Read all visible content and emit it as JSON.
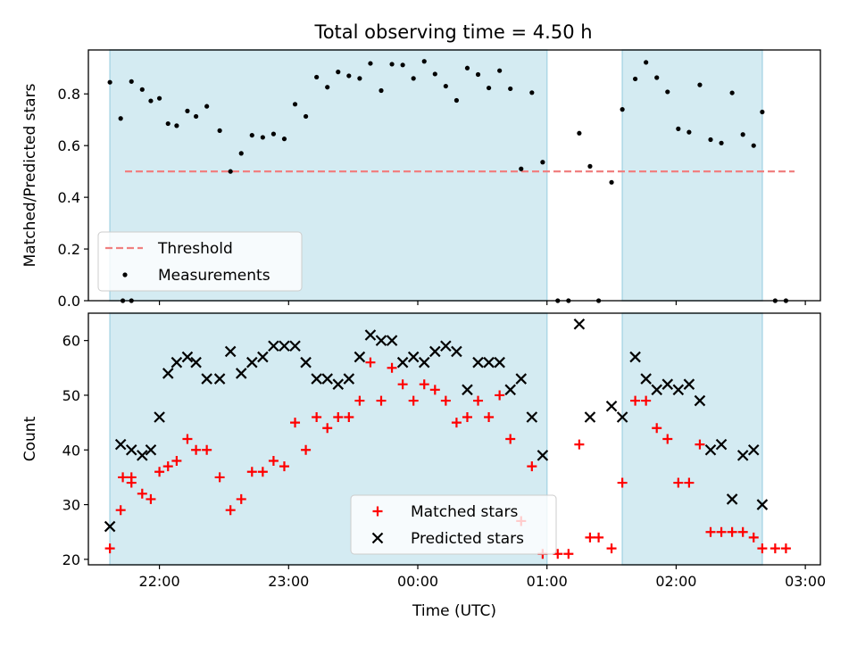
{
  "figure": {
    "title": "Total observing time = 4.50 h",
    "colors": {
      "shade": "#add8e6",
      "threshold": "#f08080",
      "measurement": "#000000",
      "matched": "#ff0000",
      "predicted": "#000000"
    }
  },
  "chart_data": [
    {
      "type": "scatter",
      "xlabel": "",
      "ylabel": "Matched/Predicted stars",
      "xlim": [
        "21:27",
        "03:07"
      ],
      "xticks": [
        "22:00",
        "23:00",
        "00:00",
        "01:00",
        "02:00",
        "03:00"
      ],
      "xtick_labels_visible": false,
      "ylim": [
        0,
        0.97
      ],
      "yticks": [
        "0.0",
        "0.2",
        "0.4",
        "0.6",
        "0.8"
      ],
      "shaded_intervals": [
        [
          "21:37",
          "01:00"
        ],
        [
          "01:35",
          "02:40"
        ]
      ],
      "legend": {
        "position": "lower-left",
        "entries": [
          "Threshold",
          "Measurements"
        ]
      },
      "series": [
        {
          "name": "Threshold",
          "kind": "dashed-line",
          "points": [
            [
              "21:44",
              0.5
            ],
            [
              "02:55",
              0.5
            ]
          ]
        },
        {
          "name": "Measurements",
          "kind": "dot",
          "points": [
            [
              "21:43",
              0.0
            ],
            [
              "21:47",
              0.0
            ],
            [
              "21:37",
              0.845
            ],
            [
              "21:42",
              0.705
            ],
            [
              "21:47",
              0.848
            ],
            [
              "21:52",
              0.817
            ],
            [
              "21:56",
              0.773
            ],
            [
              "22:00",
              0.783
            ],
            [
              "22:04",
              0.685
            ],
            [
              "22:08",
              0.677
            ],
            [
              "22:13",
              0.734
            ],
            [
              "22:17",
              0.713
            ],
            [
              "22:22",
              0.752
            ],
            [
              "22:28",
              0.658
            ],
            [
              "22:33",
              0.5
            ],
            [
              "22:38",
              0.57
            ],
            [
              "22:43",
              0.64
            ],
            [
              "22:48",
              0.632
            ],
            [
              "22:53",
              0.645
            ],
            [
              "22:58",
              0.626
            ],
            [
              "23:03",
              0.76
            ],
            [
              "23:08",
              0.713
            ],
            [
              "23:13",
              0.865
            ],
            [
              "23:18",
              0.826
            ],
            [
              "23:23",
              0.885
            ],
            [
              "23:28",
              0.87
            ],
            [
              "23:33",
              0.86
            ],
            [
              "23:38",
              0.918
            ],
            [
              "23:43",
              0.813
            ],
            [
              "23:48",
              0.915
            ],
            [
              "23:53",
              0.912
            ],
            [
              "23:58",
              0.86
            ],
            [
              "00:03",
              0.926
            ],
            [
              "00:08",
              0.877
            ],
            [
              "00:13",
              0.83
            ],
            [
              "00:18",
              0.775
            ],
            [
              "00:23",
              0.9
            ],
            [
              "00:28",
              0.875
            ],
            [
              "00:33",
              0.823
            ],
            [
              "00:38",
              0.89
            ],
            [
              "00:43",
              0.82
            ],
            [
              "00:48",
              0.51
            ],
            [
              "00:53",
              0.805
            ],
            [
              "00:58",
              0.536
            ],
            [
              "01:05",
              0.0
            ],
            [
              "01:10",
              0.0
            ],
            [
              "01:15",
              0.648
            ],
            [
              "01:20",
              0.52
            ],
            [
              "01:24",
              0.0
            ],
            [
              "01:30",
              0.458
            ],
            [
              "01:35",
              0.74
            ],
            [
              "01:41",
              0.858
            ],
            [
              "01:46",
              0.922
            ],
            [
              "01:51",
              0.863
            ],
            [
              "01:56",
              0.808
            ],
            [
              "02:01",
              0.665
            ],
            [
              "02:06",
              0.652
            ],
            [
              "02:11",
              0.835
            ],
            [
              "02:16",
              0.623
            ],
            [
              "02:21",
              0.61
            ],
            [
              "02:26",
              0.804
            ],
            [
              "02:31",
              0.643
            ],
            [
              "02:36",
              0.6
            ],
            [
              "02:40",
              0.73
            ],
            [
              "02:46",
              0.0
            ],
            [
              "02:51",
              0.0
            ]
          ]
        }
      ]
    },
    {
      "type": "scatter",
      "xlabel": "Time (UTC)",
      "ylabel": "Count",
      "xlim": [
        "21:27",
        "03:07"
      ],
      "xticks": [
        "22:00",
        "23:00",
        "00:00",
        "01:00",
        "02:00",
        "03:00"
      ],
      "ylim": [
        19,
        65
      ],
      "yticks": [
        "20",
        "30",
        "40",
        "50",
        "60"
      ],
      "shaded_intervals": [
        [
          "21:37",
          "01:00"
        ],
        [
          "01:35",
          "02:40"
        ]
      ],
      "legend": {
        "position": "lower-center",
        "entries": [
          "Matched stars",
          "Predicted stars"
        ]
      },
      "series": [
        {
          "name": "Matched stars",
          "marker": "+",
          "points": [
            [
              "21:43",
              35
            ],
            [
              "21:47",
              35
            ],
            [
              "21:37",
              22
            ],
            [
              "21:42",
              29
            ],
            [
              "21:47",
              34
            ],
            [
              "21:52",
              32
            ],
            [
              "21:56",
              31
            ],
            [
              "22:00",
              36
            ],
            [
              "22:04",
              37
            ],
            [
              "22:08",
              38
            ],
            [
              "22:13",
              42
            ],
            [
              "22:17",
              40
            ],
            [
              "22:22",
              40
            ],
            [
              "22:28",
              35
            ],
            [
              "22:33",
              29
            ],
            [
              "22:38",
              31
            ],
            [
              "22:43",
              36
            ],
            [
              "22:48",
              36
            ],
            [
              "22:53",
              38
            ],
            [
              "22:58",
              37
            ],
            [
              "23:03",
              45
            ],
            [
              "23:08",
              40
            ],
            [
              "23:13",
              46
            ],
            [
              "23:18",
              44
            ],
            [
              "23:23",
              46
            ],
            [
              "23:28",
              46
            ],
            [
              "23:33",
              49
            ],
            [
              "23:38",
              56
            ],
            [
              "23:43",
              49
            ],
            [
              "23:48",
              55
            ],
            [
              "23:53",
              52
            ],
            [
              "23:58",
              49
            ],
            [
              "00:03",
              52
            ],
            [
              "00:08",
              51
            ],
            [
              "00:13",
              49
            ],
            [
              "00:18",
              45
            ],
            [
              "00:23",
              46
            ],
            [
              "00:28",
              49
            ],
            [
              "00:33",
              46
            ],
            [
              "00:38",
              50
            ],
            [
              "00:43",
              42
            ],
            [
              "00:48",
              27
            ],
            [
              "00:53",
              37
            ],
            [
              "00:58",
              21
            ],
            [
              "01:05",
              21
            ],
            [
              "01:10",
              21
            ],
            [
              "01:15",
              41
            ],
            [
              "01:20",
              24
            ],
            [
              "01:24",
              24
            ],
            [
              "01:30",
              22
            ],
            [
              "01:35",
              34
            ],
            [
              "01:41",
              49
            ],
            [
              "01:46",
              49
            ],
            [
              "01:51",
              44
            ],
            [
              "01:56",
              42
            ],
            [
              "02:01",
              34
            ],
            [
              "02:06",
              34
            ],
            [
              "02:11",
              41
            ],
            [
              "02:16",
              25
            ],
            [
              "02:21",
              25
            ],
            [
              "02:26",
              25
            ],
            [
              "02:31",
              25
            ],
            [
              "02:36",
              24
            ],
            [
              "02:40",
              22
            ],
            [
              "02:46",
              22
            ],
            [
              "02:51",
              22
            ]
          ]
        },
        {
          "name": "Predicted stars",
          "marker": "x",
          "points": [
            [
              "21:37",
              26
            ],
            [
              "21:42",
              41
            ],
            [
              "21:47",
              40
            ],
            [
              "21:52",
              39
            ],
            [
              "21:56",
              40
            ],
            [
              "22:00",
              46
            ],
            [
              "22:04",
              54
            ],
            [
              "22:08",
              56
            ],
            [
              "22:13",
              57
            ],
            [
              "22:17",
              56
            ],
            [
              "22:22",
              53
            ],
            [
              "22:28",
              53
            ],
            [
              "22:33",
              58
            ],
            [
              "22:38",
              54
            ],
            [
              "22:43",
              56
            ],
            [
              "22:48",
              57
            ],
            [
              "22:53",
              59
            ],
            [
              "22:58",
              59
            ],
            [
              "23:03",
              59
            ],
            [
              "23:08",
              56
            ],
            [
              "23:13",
              53
            ],
            [
              "23:18",
              53
            ],
            [
              "23:23",
              52
            ],
            [
              "23:28",
              53
            ],
            [
              "23:33",
              57
            ],
            [
              "23:38",
              61
            ],
            [
              "23:43",
              60
            ],
            [
              "23:48",
              60
            ],
            [
              "23:53",
              56
            ],
            [
              "23:58",
              57
            ],
            [
              "00:03",
              56
            ],
            [
              "00:08",
              58
            ],
            [
              "00:13",
              59
            ],
            [
              "00:18",
              58
            ],
            [
              "00:23",
              51
            ],
            [
              "00:28",
              56
            ],
            [
              "00:33",
              56
            ],
            [
              "00:38",
              56
            ],
            [
              "00:43",
              51
            ],
            [
              "00:48",
              53
            ],
            [
              "00:53",
              46
            ],
            [
              "00:58",
              39
            ],
            [
              "01:15",
              63
            ],
            [
              "01:20",
              46
            ],
            [
              "01:30",
              48
            ],
            [
              "01:35",
              46
            ],
            [
              "01:41",
              57
            ],
            [
              "01:46",
              53
            ],
            [
              "01:51",
              51
            ],
            [
              "01:56",
              52
            ],
            [
              "02:01",
              51
            ],
            [
              "02:06",
              52
            ],
            [
              "02:11",
              49
            ],
            [
              "02:16",
              40
            ],
            [
              "02:21",
              41
            ],
            [
              "02:26",
              31
            ],
            [
              "02:31",
              39
            ],
            [
              "02:36",
              40
            ],
            [
              "02:40",
              30
            ]
          ]
        }
      ]
    }
  ]
}
